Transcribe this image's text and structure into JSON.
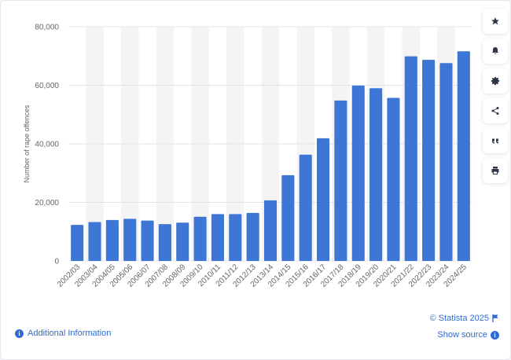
{
  "colors": {
    "bar": "#3e76d6",
    "accent": "#2f6bd4",
    "band": "#f4f4f4",
    "grid": "#e3e3e3"
  },
  "chart_data": {
    "type": "bar",
    "title": "",
    "xlabel": "",
    "ylabel": "Number of rape offences",
    "ylim": [
      0,
      80000
    ],
    "yticks": [
      0,
      20000,
      40000,
      60000,
      80000
    ],
    "ytick_labels": [
      "0",
      "20,000",
      "40,000",
      "60,000",
      "80,000"
    ],
    "grid": true,
    "categories": [
      "2002/03",
      "2003/04",
      "2004/05",
      "2005/06",
      "2006/07",
      "2007/08",
      "2008/09",
      "2009/10",
      "2010/11",
      "2011/12",
      "2012/13",
      "2013/14",
      "2014/15",
      "2015/16",
      "2016/17",
      "2017/18",
      "2018/19",
      "2019/20",
      "2020/21",
      "2021/22",
      "2022/23",
      "2023/24",
      "2024/25"
    ],
    "values": [
      12300,
      13300,
      14000,
      14400,
      13800,
      12600,
      13100,
      15100,
      16000,
      16000,
      16400,
      20700,
      29300,
      36300,
      41900,
      54800,
      59900,
      59000,
      55700,
      69900,
      68700,
      67600,
      71600
    ]
  },
  "sidebar": {
    "buttons": [
      {
        "name": "star-icon"
      },
      {
        "name": "bell-icon"
      },
      {
        "name": "gear-icon"
      },
      {
        "name": "share-icon"
      },
      {
        "name": "quote-icon"
      },
      {
        "name": "print-icon"
      }
    ]
  },
  "footer": {
    "additional_info": "Additional Information",
    "copyright": "© Statista 2025",
    "show_source": "Show source",
    "info_glyph": "i"
  }
}
